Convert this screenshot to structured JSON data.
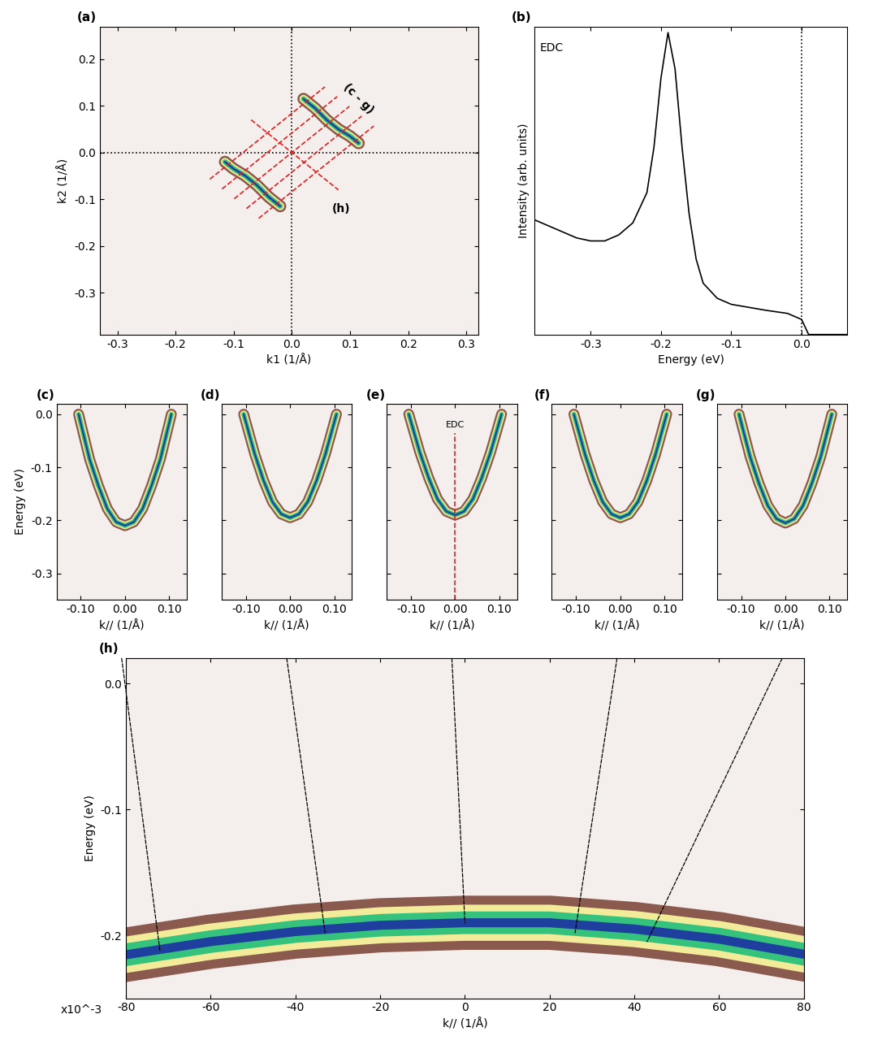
{
  "chart_data": [
    {
      "type": "line",
      "title": "(a)",
      "xlabel": "k1 (1/Å)",
      "ylabel": "k2 (1/Å)",
      "xlim": [
        -0.33,
        0.32
      ],
      "ylim": [
        -0.39,
        0.27
      ],
      "xticks": [
        -0.3,
        -0.2,
        -0.1,
        0.0,
        0.1,
        0.2,
        0.3
      ],
      "yticks": [
        -0.3,
        -0.2,
        -0.1,
        0.0,
        0.1,
        0.2
      ],
      "series": [
        {
          "type": "line",
          "color": "#000000",
          "line_style": "dotted",
          "x": [
            -0.33,
            0.32
          ],
          "values": [
            0.0,
            0.0
          ]
        },
        {
          "type": "line",
          "color": "#000000",
          "line_style": "dotted",
          "x": [
            0.0,
            0.0
          ],
          "values": [
            -0.39,
            0.27
          ]
        },
        {
          "type": "band",
          "color": "#1f3f9f",
          "x": [
            0.02,
            0.04,
            0.06,
            0.08,
            0.1,
            0.115
          ],
          "values": [
            0.115,
            0.095,
            0.07,
            0.05,
            0.035,
            0.02
          ]
        },
        {
          "type": "band",
          "color": "#1f3f9f",
          "x": [
            -0.02,
            -0.04,
            -0.06,
            -0.08,
            -0.1,
            -0.115
          ],
          "values": [
            -0.115,
            -0.095,
            -0.07,
            -0.05,
            -0.035,
            -0.02
          ]
        },
        {
          "type": "line",
          "color": "#e02020",
          "line_style": "dashed",
          "x": [
            -0.057,
            0.141
          ],
          "values": [
            -0.141,
            0.057
          ]
        },
        {
          "type": "line",
          "color": "#e02020",
          "line_style": "dashed",
          "x": [
            -0.078,
            0.12
          ],
          "values": [
            -0.12,
            0.078
          ]
        },
        {
          "type": "line",
          "color": "#e02020",
          "line_style": "dashed",
          "x": [
            -0.099,
            0.099
          ],
          "values": [
            -0.099,
            0.099
          ]
        },
        {
          "type": "line",
          "color": "#e02020",
          "line_style": "dashed",
          "x": [
            -0.12,
            0.078
          ],
          "values": [
            -0.078,
            0.12
          ]
        },
        {
          "type": "line",
          "color": "#e02020",
          "line_style": "dashed",
          "x": [
            -0.141,
            0.057
          ],
          "values": [
            -0.057,
            0.141
          ]
        },
        {
          "type": "line",
          "color": "#e02020",
          "line_style": "dashed",
          "x": [
            -0.07,
            0.08
          ],
          "values": [
            0.07,
            -0.08
          ]
        }
      ],
      "annotations": [
        {
          "text": "(c - g)",
          "x": 0.115,
          "y": 0.115
        },
        {
          "text": "(h)",
          "x": 0.085,
          "y": -0.12
        }
      ]
    },
    {
      "type": "line",
      "title": "(b)",
      "xlabel": "Energy (eV)",
      "ylabel": "Intensity (arb. units)",
      "xlim": [
        -0.38,
        0.065
      ],
      "ylim": [
        0.0,
        1.02
      ],
      "xticks": [
        -0.3,
        -0.2,
        -0.1,
        0.0
      ],
      "tick_labels": "x",
      "series": [
        {
          "type": "line",
          "color": "#000000",
          "line_style": "solid",
          "x": [
            -0.38,
            -0.35,
            -0.32,
            -0.3,
            -0.28,
            -0.26,
            -0.24,
            -0.22,
            -0.21,
            -0.2,
            -0.19,
            -0.18,
            -0.17,
            -0.16,
            -0.15,
            -0.14,
            -0.12,
            -0.1,
            -0.05,
            -0.02,
            0.0,
            0.01,
            0.065
          ],
          "values": [
            0.38,
            0.35,
            0.32,
            0.31,
            0.31,
            0.33,
            0.37,
            0.47,
            0.62,
            0.85,
            1.0,
            0.88,
            0.62,
            0.4,
            0.25,
            0.17,
            0.12,
            0.1,
            0.08,
            0.07,
            0.05,
            0.0,
            0.0
          ]
        },
        {
          "type": "line",
          "color": "#000000",
          "line_style": "dotted",
          "x": [
            0.0,
            0.0
          ],
          "values": [
            0.0,
            1.02
          ]
        }
      ],
      "annotations": [
        {
          "text": "EDC",
          "x": -0.355,
          "y": 0.95
        }
      ]
    },
    {
      "type": "line",
      "title": "(c)",
      "xlabel": "k// (1/Å)",
      "ylabel": "Energy (eV)",
      "xlim": [
        -0.155,
        0.14
      ],
      "ylim": [
        -0.35,
        0.02
      ],
      "xticks": [
        {
          "value": -0.1,
          "label": "-0.10"
        },
        {
          "value": 0.0,
          "label": "0.00"
        },
        {
          "value": 0.1,
          "label": "0.10"
        }
      ],
      "yticks": [
        -0.3,
        -0.2,
        -0.1,
        0.0
      ],
      "series": [
        {
          "type": "band",
          "color": "#1f3f9f",
          "x": [
            -0.105,
            -0.08,
            -0.06,
            -0.04,
            -0.02,
            0.0,
            0.02,
            0.04,
            0.06,
            0.08,
            0.105
          ],
          "values": [
            0.0,
            -0.085,
            -0.135,
            -0.178,
            -0.203,
            -0.21,
            -0.203,
            -0.178,
            -0.135,
            -0.085,
            0.0
          ]
        }
      ]
    },
    {
      "type": "line",
      "title": "(d)",
      "xlabel": "k// (1/Å)",
      "xlim": [
        -0.155,
        0.14
      ],
      "ylim": [
        -0.35,
        0.02
      ],
      "tick_labels": "x",
      "xticks": [
        {
          "value": -0.1,
          "label": "-0.10"
        },
        {
          "value": 0.0,
          "label": "0.00"
        },
        {
          "value": 0.1,
          "label": "0.10"
        }
      ],
      "yticks": [
        -0.3,
        -0.2,
        -0.1,
        0.0
      ],
      "series": [
        {
          "type": "band",
          "color": "#1f3f9f",
          "x": [
            -0.105,
            -0.08,
            -0.06,
            -0.04,
            -0.02,
            0.0,
            0.02,
            0.04,
            0.06,
            0.08,
            0.105
          ],
          "values": [
            0.0,
            -0.075,
            -0.125,
            -0.165,
            -0.188,
            -0.195,
            -0.188,
            -0.165,
            -0.125,
            -0.075,
            0.0
          ]
        }
      ]
    },
    {
      "type": "line",
      "title": "(e)",
      "xlabel": "k// (1/Å)",
      "xlim": [
        -0.155,
        0.14
      ],
      "ylim": [
        -0.35,
        0.02
      ],
      "tick_labels": "x",
      "xticks": [
        {
          "value": -0.1,
          "label": "-0.10"
        },
        {
          "value": 0.0,
          "label": "0.00"
        },
        {
          "value": 0.1,
          "label": "0.10"
        }
      ],
      "yticks": [
        -0.3,
        -0.2,
        -0.1,
        0.0
      ],
      "series": [
        {
          "type": "band",
          "color": "#1f3f9f",
          "x": [
            -0.105,
            -0.08,
            -0.06,
            -0.04,
            -0.02,
            0.0,
            0.02,
            0.04,
            0.06,
            0.08,
            0.105
          ],
          "values": [
            0.0,
            -0.072,
            -0.12,
            -0.16,
            -0.183,
            -0.19,
            -0.183,
            -0.16,
            -0.12,
            -0.072,
            0.0
          ]
        },
        {
          "type": "line",
          "color": "#e02020",
          "line_style": "dashed",
          "x": [
            0.0,
            0.0
          ],
          "values": [
            -0.35,
            -0.035
          ]
        }
      ],
      "annotations": [
        {
          "text": "EDC",
          "x": 0.0,
          "y": -0.02
        }
      ]
    },
    {
      "type": "line",
      "title": "(f)",
      "xlabel": "k// (1/Å)",
      "xlim": [
        -0.155,
        0.14
      ],
      "ylim": [
        -0.35,
        0.02
      ],
      "tick_labels": "x",
      "xticks": [
        {
          "value": -0.1,
          "label": "-0.10"
        },
        {
          "value": 0.0,
          "label": "0.00"
        },
        {
          "value": 0.1,
          "label": "0.10"
        }
      ],
      "yticks": [
        -0.3,
        -0.2,
        -0.1,
        0.0
      ],
      "series": [
        {
          "type": "band",
          "color": "#1f3f9f",
          "x": [
            -0.105,
            -0.08,
            -0.06,
            -0.04,
            -0.02,
            0.0,
            0.02,
            0.04,
            0.06,
            0.08,
            0.105
          ],
          "values": [
            0.0,
            -0.075,
            -0.125,
            -0.165,
            -0.188,
            -0.195,
            -0.188,
            -0.165,
            -0.125,
            -0.075,
            0.0
          ]
        }
      ]
    },
    {
      "type": "line",
      "title": "(g)",
      "xlabel": "k// (1/Å)",
      "xlim": [
        -0.155,
        0.14
      ],
      "ylim": [
        -0.35,
        0.02
      ],
      "tick_labels": "x",
      "xticks": [
        {
          "value": -0.1,
          "label": "-0.10"
        },
        {
          "value": 0.0,
          "label": "0.00"
        },
        {
          "value": 0.1,
          "label": "0.10"
        }
      ],
      "yticks": [
        -0.3,
        -0.2,
        -0.1,
        0.0
      ],
      "series": [
        {
          "type": "band",
          "color": "#1f3f9f",
          "x": [
            -0.105,
            -0.08,
            -0.06,
            -0.04,
            -0.02,
            0.0,
            0.02,
            0.04,
            0.06,
            0.08,
            0.105
          ],
          "values": [
            0.0,
            -0.08,
            -0.13,
            -0.172,
            -0.197,
            -0.205,
            -0.197,
            -0.172,
            -0.13,
            -0.08,
            0.0
          ]
        }
      ]
    },
    {
      "type": "line",
      "title": "(h)",
      "xlabel": "k// (1/Å)",
      "ylabel": "Energy (eV)",
      "multiplier": "x10^-3",
      "xlim": [
        -0.08,
        0.08
      ],
      "ylim": [
        -0.25,
        0.02
      ],
      "xticks": [
        {
          "value": -0.08,
          "label": "-80"
        },
        {
          "value": -0.06,
          "label": "-60"
        },
        {
          "value": -0.04,
          "label": "-40"
        },
        {
          "value": -0.02,
          "label": "-20"
        },
        {
          "value": 0.0,
          "label": "0"
        },
        {
          "value": 0.02,
          "label": "20"
        },
        {
          "value": 0.04,
          "label": "40"
        },
        {
          "value": 0.06,
          "label": "60"
        },
        {
          "value": 0.08,
          "label": "80"
        }
      ],
      "yticks": [
        -0.2,
        -0.1,
        0.0
      ],
      "series": [
        {
          "type": "band",
          "color": "#1f3f9f",
          "x": [
            -0.085,
            -0.06,
            -0.04,
            -0.02,
            0.0,
            0.02,
            0.04,
            0.06,
            0.085
          ],
          "values": [
            -0.218,
            -0.205,
            -0.197,
            -0.192,
            -0.19,
            -0.19,
            -0.195,
            -0.203,
            -0.218
          ]
        }
      ],
      "cuts": {
        "k": [
          -0.072,
          -0.033,
          0.0,
          0.026,
          0.043
        ],
        "energy": [
          -0.212,
          -0.198,
          -0.19,
          -0.198,
          -0.205
        ]
      }
    }
  ]
}
